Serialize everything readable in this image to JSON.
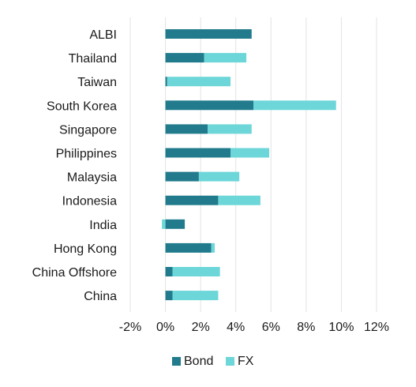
{
  "chart_data": {
    "type": "bar",
    "orientation": "horizontal",
    "stacked": true,
    "categories": [
      "ALBI",
      "Thailand",
      "Taiwan",
      "South Korea",
      "Singapore",
      "Philippines",
      "Malaysia",
      "Indonesia",
      "India",
      "Hong Kong",
      "China Offshore",
      "China"
    ],
    "series": [
      {
        "name": "Bond",
        "color": "#217b8c",
        "values": [
          4.9,
          2.2,
          0.1,
          5.0,
          2.4,
          3.7,
          1.9,
          3.0,
          1.1,
          2.6,
          0.4,
          0.4
        ]
      },
      {
        "name": "FX",
        "color": "#6dd6d8",
        "values": [
          0.0,
          2.4,
          3.6,
          4.7,
          2.5,
          2.2,
          2.3,
          2.4,
          -0.2,
          0.2,
          2.7,
          2.6
        ]
      }
    ],
    "xlim": [
      -2,
      12
    ],
    "xticks": [
      -2,
      0,
      2,
      4,
      6,
      8,
      10,
      12
    ],
    "xtick_labels": [
      "-2%",
      "0%",
      "2%",
      "4%",
      "6%",
      "8%",
      "10%",
      "12%"
    ],
    "grid": "vertical",
    "legend_position": "bottom",
    "title": "",
    "xlabel": "",
    "ylabel": ""
  }
}
